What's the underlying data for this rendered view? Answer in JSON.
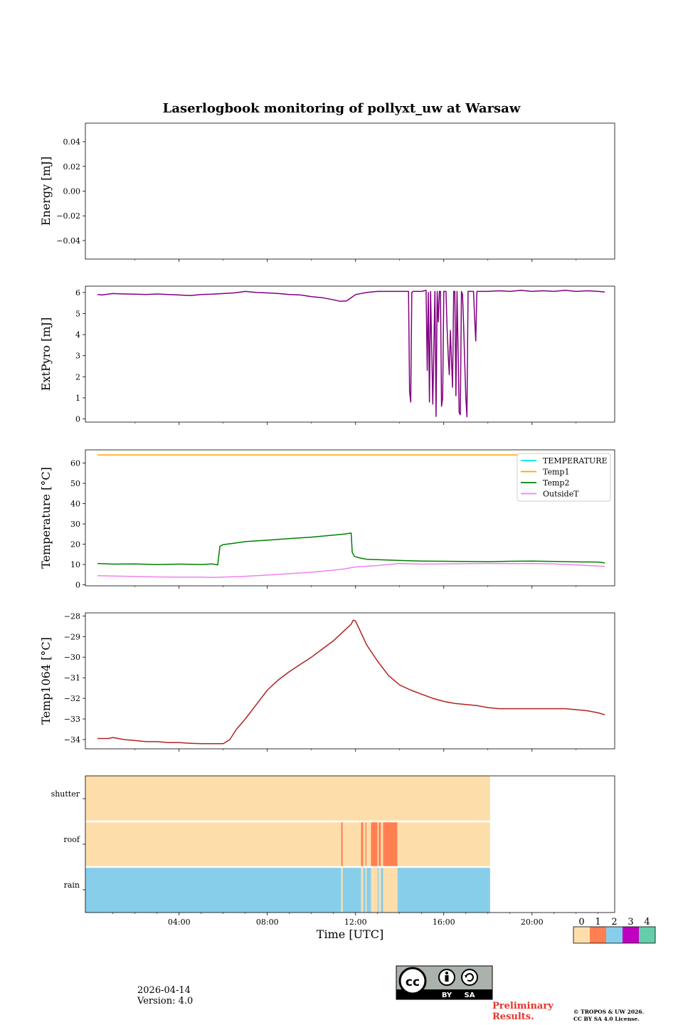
{
  "figure": {
    "title": "Laserlogbook monitoring of pollyxt_uw at Warsaw",
    "date": "2026-04-14",
    "version": "Version: 4.0",
    "preliminary": [
      "Preliminary",
      "Results."
    ],
    "copyright": [
      "© TROPOS & UW 2026.",
      "CC BY SA 4.0 License."
    ],
    "license_badge": {
      "cc": "cc",
      "by": "BY",
      "sa": "SA"
    }
  },
  "colors": {
    "extpyro": "#800080",
    "temperature": "#00e5e5",
    "temp1": "#ffa500",
    "temp2": "#008000",
    "outsideT": "#ee82ee",
    "temp1064": "#b22222",
    "status_0": "#fddeab",
    "status_1": "#ff7f50",
    "status_2": "#87ceeb",
    "status_3": "#c000c0",
    "status_4": "#66cdaa"
  },
  "chart_data": [
    {
      "type": "line",
      "panel": "energy",
      "ylabel": "Energy [mJ]",
      "ylim": [
        -0.055,
        0.055
      ],
      "yticks": [
        0.04,
        0.02,
        0.0,
        -0.02,
        -0.04
      ],
      "ytick_labels": [
        "0.04",
        "0.02",
        "0.00",
        "−0.02",
        "−0.04"
      ],
      "series": []
    },
    {
      "type": "line",
      "panel": "extpyro",
      "ylabel": "ExtPyro [mJ]",
      "ylim": [
        -0.15,
        6.3
      ],
      "yticks": [
        0,
        1,
        2,
        3,
        4,
        5,
        6
      ],
      "ytick_labels": [
        "0",
        "1",
        "2",
        "3",
        "4",
        "5",
        "6"
      ],
      "series": [
        {
          "name": "ExtPyro",
          "x": [
            0.3,
            0.5,
            1.0,
            1.5,
            2.0,
            2.5,
            3.0,
            3.5,
            4.0,
            4.5,
            5.0,
            5.5,
            6.0,
            6.5,
            7.0,
            7.5,
            8.0,
            8.5,
            9.0,
            9.5,
            10.0,
            10.5,
            11.0,
            11.3,
            11.6,
            11.8,
            12.0,
            12.5,
            13.0,
            13.5,
            14.0,
            14.4,
            14.45,
            14.5,
            14.55,
            14.6,
            14.8,
            15.0,
            15.2,
            15.25,
            15.3,
            15.35,
            15.4,
            15.5,
            15.6,
            15.65,
            15.7,
            15.75,
            15.8,
            15.85,
            15.9,
            15.95,
            16.0,
            16.1,
            16.15,
            16.2,
            16.25,
            16.3,
            16.4,
            16.45,
            16.5,
            16.55,
            16.6,
            16.7,
            16.75,
            16.8,
            16.85,
            16.9,
            16.95,
            17.0,
            17.05,
            17.1,
            17.15,
            17.2,
            17.25,
            17.3,
            17.35,
            17.4,
            17.45,
            17.5,
            17.55,
            17.6,
            17.65,
            17.7,
            17.75,
            17.8,
            17.85,
            17.9,
            17.95,
            18.0,
            18.5,
            19.0,
            19.5,
            20.0,
            20.5,
            21.0,
            21.5,
            22.0,
            22.5,
            23.0,
            23.3
          ],
          "y": [
            5.9,
            5.88,
            5.95,
            5.93,
            5.92,
            5.9,
            5.93,
            5.9,
            5.88,
            5.85,
            5.9,
            5.92,
            5.95,
            5.98,
            6.05,
            6.0,
            5.98,
            5.95,
            5.9,
            5.88,
            5.8,
            5.75,
            5.65,
            5.58,
            5.6,
            5.75,
            5.9,
            6.0,
            6.05,
            6.05,
            6.05,
            6.05,
            1.3,
            0.8,
            6.0,
            6.05,
            6.05,
            6.05,
            6.1,
            2.3,
            6.0,
            0.8,
            6.05,
            0.7,
            6.05,
            0.12,
            6.05,
            4.6,
            6.05,
            6.05,
            0.6,
            1.0,
            6.05,
            6.05,
            4.3,
            3.0,
            2.1,
            4.2,
            1.5,
            6.05,
            6.05,
            1.1,
            6.05,
            0.3,
            0.2,
            6.05,
            5.9,
            4.5,
            2.7,
            1.0,
            0.1,
            6.05,
            6.05,
            6.05,
            6.05,
            6.05,
            6.05,
            4.8,
            3.7,
            6.05,
            6.05,
            6.05,
            6.05,
            6.05,
            6.05,
            6.05,
            6.05,
            6.05,
            6.05,
            6.05,
            6.08,
            6.05,
            6.1,
            6.05,
            6.08,
            6.05,
            6.1,
            6.05,
            6.08,
            6.05,
            6.02
          ]
        }
      ]
    },
    {
      "type": "line",
      "panel": "temperature",
      "ylabel": "Temperature [°C]",
      "ylim": [
        -0.5,
        66.5
      ],
      "yticks": [
        0,
        10,
        20,
        30,
        40,
        50,
        60
      ],
      "ytick_labels": [
        "0",
        "10",
        "20",
        "30",
        "40",
        "50",
        "60"
      ],
      "legend_position": "upper right",
      "series": [
        {
          "name": "TEMPERATURE",
          "x": [],
          "y": []
        },
        {
          "name": "Temp1",
          "x": [
            0.3,
            23.3
          ],
          "y": [
            64,
            64
          ]
        },
        {
          "name": "Temp2",
          "x": [
            0.3,
            1.0,
            2.0,
            3.0,
            4.0,
            5.0,
            5.5,
            5.75,
            5.85,
            6.0,
            6.5,
            7.0,
            8.0,
            9.0,
            10.0,
            11.0,
            11.5,
            11.8,
            11.85,
            11.95,
            12.2,
            12.5,
            13.0,
            14.0,
            15.0,
            16.0,
            17.0,
            18.0,
            19.0,
            20.0,
            21.0,
            22.0,
            23.0,
            23.3
          ],
          "y": [
            10.5,
            10.2,
            10.3,
            10.0,
            10.2,
            10.0,
            10.3,
            9.8,
            19.0,
            19.8,
            20.5,
            21.3,
            22.0,
            22.8,
            23.5,
            24.5,
            25.0,
            25.5,
            16.0,
            14.0,
            13.2,
            12.6,
            12.4,
            12.0,
            11.7,
            11.6,
            11.5,
            11.4,
            11.6,
            11.7,
            11.5,
            11.3,
            11.2,
            10.8
          ]
        },
        {
          "name": "OutsideT",
          "x": [
            0.3,
            1.0,
            2.0,
            3.0,
            4.0,
            5.0,
            5.5,
            6.0,
            7.0,
            8.0,
            9.0,
            10.0,
            11.0,
            11.5,
            12.0,
            13.0,
            14.0,
            15.0,
            16.0,
            17.0,
            18.0,
            19.0,
            20.0,
            21.0,
            22.0,
            23.0,
            23.3
          ],
          "y": [
            4.5,
            4.3,
            4.1,
            3.9,
            3.8,
            3.8,
            3.6,
            3.8,
            4.2,
            4.8,
            5.5,
            6.2,
            7.2,
            7.8,
            8.8,
            9.5,
            10.5,
            10.2,
            10.3,
            10.4,
            10.5,
            10.4,
            10.5,
            10.3,
            9.8,
            9.2,
            9.1
          ]
        }
      ]
    },
    {
      "type": "line",
      "panel": "temp1064",
      "ylabel": "Temp1064 [°C]",
      "ylim": [
        -34.45,
        -27.85
      ],
      "yticks": [
        -28,
        -29,
        -30,
        -31,
        -32,
        -33,
        -34
      ],
      "ytick_labels": [
        "−28",
        "−29",
        "−30",
        "−31",
        "−32",
        "−33",
        "−34"
      ],
      "series": [
        {
          "name": "Temp1064",
          "x": [
            0.3,
            0.8,
            1.0,
            1.5,
            2.0,
            2.5,
            3.0,
            3.5,
            4.0,
            4.5,
            5.0,
            5.5,
            6.0,
            6.3,
            6.6,
            7.0,
            7.5,
            8.0,
            8.5,
            9.0,
            9.5,
            10.0,
            10.5,
            11.0,
            11.5,
            11.8,
            11.9,
            12.0,
            12.2,
            12.5,
            13.0,
            13.5,
            14.0,
            14.5,
            15.0,
            15.5,
            16.0,
            16.5,
            17.0,
            17.5,
            18.0,
            18.5,
            19.0,
            19.5,
            20.0,
            20.5,
            21.0,
            21.5,
            22.0,
            22.5,
            23.0,
            23.3
          ],
          "y": [
            -33.95,
            -33.95,
            -33.9,
            -34.0,
            -34.05,
            -34.1,
            -34.1,
            -34.15,
            -34.15,
            -34.18,
            -34.2,
            -34.2,
            -34.2,
            -34.0,
            -33.5,
            -33.0,
            -32.3,
            -31.6,
            -31.1,
            -30.7,
            -30.35,
            -30.0,
            -29.6,
            -29.2,
            -28.7,
            -28.4,
            -28.2,
            -28.25,
            -28.7,
            -29.4,
            -30.2,
            -30.9,
            -31.35,
            -31.6,
            -31.8,
            -32.0,
            -32.15,
            -32.25,
            -32.3,
            -32.35,
            -32.45,
            -32.5,
            -32.5,
            -32.5,
            -32.5,
            -32.5,
            -32.5,
            -32.5,
            -32.55,
            -32.6,
            -32.7,
            -32.8
          ]
        }
      ]
    },
    {
      "type": "heatmap",
      "panel": "status",
      "rows": [
        "shutter",
        "roof",
        "rain"
      ],
      "xlabel": "Time [UTC]",
      "xlim": [
        -0.25,
        23.75
      ],
      "xticks": [
        4,
        8,
        12,
        16,
        20
      ],
      "xtick_labels": [
        "04:00",
        "08:00",
        "12:00",
        "16:00",
        "20:00"
      ],
      "data_end": 18.1,
      "segments": {
        "shutter": [
          {
            "start": -0.25,
            "end": 18.1,
            "value": 0
          }
        ],
        "roof": [
          {
            "start": -0.25,
            "end": 11.35,
            "value": 0
          },
          {
            "start": 11.35,
            "end": 11.42,
            "value": 1
          },
          {
            "start": 11.42,
            "end": 12.25,
            "value": 0
          },
          {
            "start": 12.25,
            "end": 12.35,
            "value": 1
          },
          {
            "start": 12.35,
            "end": 12.45,
            "value": 0
          },
          {
            "start": 12.45,
            "end": 12.5,
            "value": 1
          },
          {
            "start": 12.5,
            "end": 12.7,
            "value": 0
          },
          {
            "start": 12.7,
            "end": 13.0,
            "value": 1
          },
          {
            "start": 13.0,
            "end": 13.05,
            "value": 0
          },
          {
            "start": 13.05,
            "end": 13.15,
            "value": 1
          },
          {
            "start": 13.15,
            "end": 13.25,
            "value": 0
          },
          {
            "start": 13.25,
            "end": 13.9,
            "value": 1
          },
          {
            "start": 13.9,
            "end": 18.1,
            "value": 0
          }
        ],
        "rain": [
          {
            "start": -0.25,
            "end": 11.35,
            "value": 2
          },
          {
            "start": 11.35,
            "end": 11.42,
            "value": 0
          },
          {
            "start": 11.42,
            "end": 12.25,
            "value": 2
          },
          {
            "start": 12.25,
            "end": 12.35,
            "value": 0
          },
          {
            "start": 12.35,
            "end": 12.45,
            "value": 2
          },
          {
            "start": 12.45,
            "end": 12.5,
            "value": 0
          },
          {
            "start": 12.5,
            "end": 12.7,
            "value": 2
          },
          {
            "start": 12.7,
            "end": 13.0,
            "value": 0
          },
          {
            "start": 13.0,
            "end": 13.05,
            "value": 2
          },
          {
            "start": 13.05,
            "end": 13.15,
            "value": 0
          },
          {
            "start": 13.15,
            "end": 13.25,
            "value": 2
          },
          {
            "start": 13.25,
            "end": 13.9,
            "value": 0
          },
          {
            "start": 13.9,
            "end": 18.1,
            "value": 2
          }
        ]
      },
      "colorbar": {
        "values": [
          0,
          1,
          2,
          3,
          4
        ],
        "labels": [
          "0",
          "1",
          "2",
          "3",
          "4"
        ]
      }
    }
  ]
}
